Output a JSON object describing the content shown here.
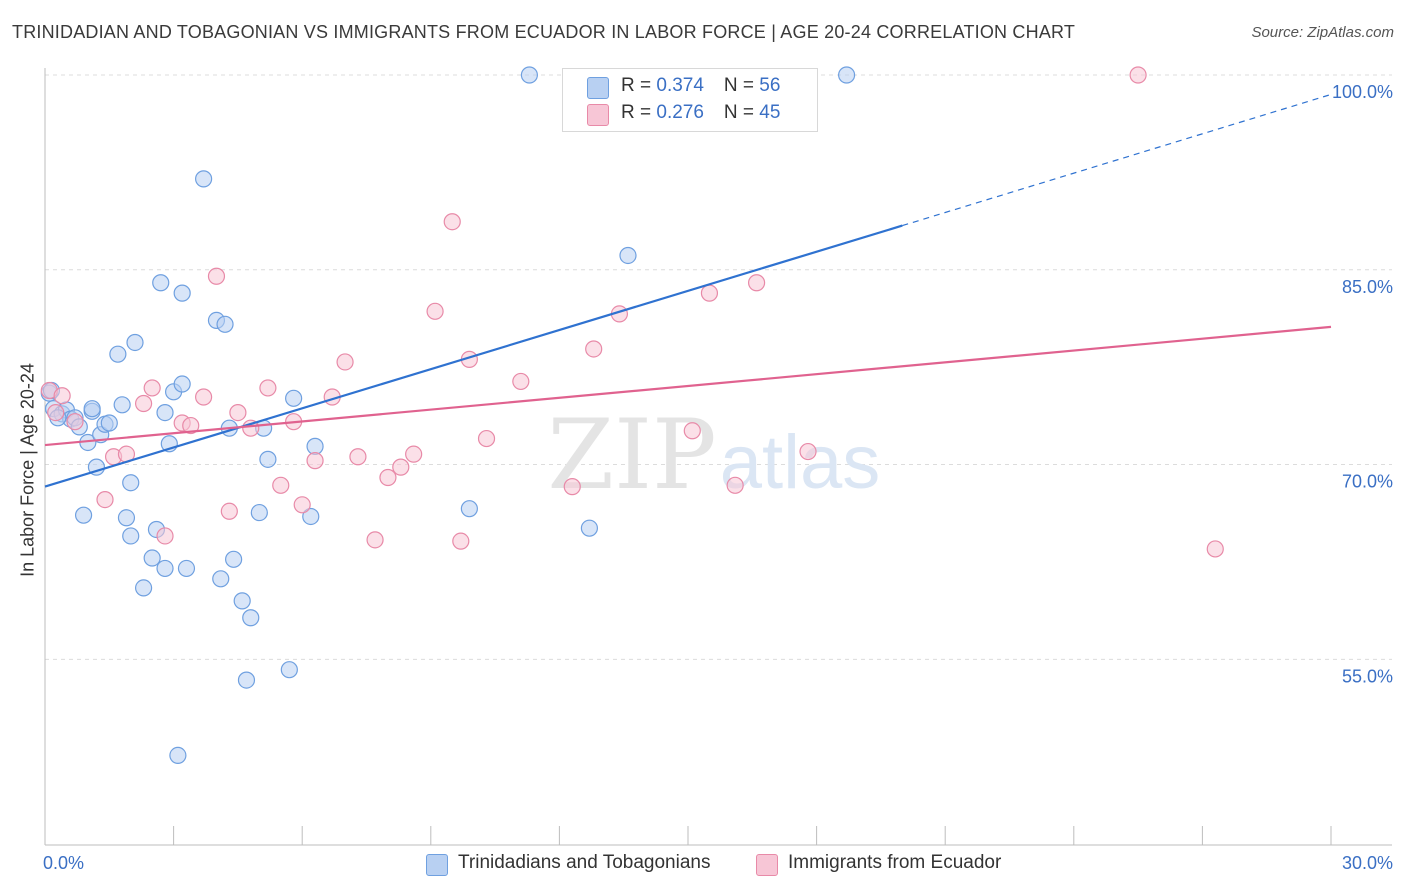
{
  "chart_data": {
    "type": "scatter",
    "title": "TRINIDADIAN AND TOBAGONIAN VS IMMIGRANTS FROM ECUADOR IN LABOR FORCE | AGE 20-24 CORRELATION CHART",
    "source": "Source: ZipAtlas.com",
    "xlabel": "",
    "ylabel": "In Labor Force | Age 20-24",
    "xlim": [
      0,
      30
    ],
    "ylim": [
      40.7,
      101.0
    ],
    "x_tick_labels": {
      "min": "0.0%",
      "max": "30.0%"
    },
    "y_ticks": [
      {
        "value": 55,
        "label": "55.0%"
      },
      {
        "value": 70,
        "label": "70.0%"
      },
      {
        "value": 85,
        "label": "85.0%"
      },
      {
        "value": 100,
        "label": "100.0%"
      }
    ],
    "watermark": {
      "zip": "ZIP",
      "atlas": "atlas"
    },
    "stats": [
      {
        "r_label": "R = ",
        "r_value": "0.374",
        "n_label": "N = ",
        "n_value": "56"
      },
      {
        "r_label": "R = ",
        "r_value": "0.276",
        "n_label": "N = ",
        "n_value": "45"
      }
    ],
    "series": [
      {
        "name": "Trinidadians and Tobagonians",
        "color": "#6fa0e0",
        "fill": "#b8d0f2",
        "line_color": "#2f72d0",
        "trend": {
          "x0": 0,
          "y0": 68.3,
          "x1": 20.0,
          "y1": 88.4,
          "dash_to_x": 30.0,
          "dash_to_y": 98.5
        },
        "points": [
          [
            0.1,
            75.5
          ],
          [
            0.2,
            74.3
          ],
          [
            0.4,
            73.9
          ],
          [
            0.5,
            74.2
          ],
          [
            0.6,
            73.5
          ],
          [
            0.7,
            73.6
          ],
          [
            0.8,
            72.9
          ],
          [
            0.9,
            66.1
          ],
          [
            1.0,
            71.7
          ],
          [
            1.1,
            74.1
          ],
          [
            1.1,
            74.3
          ],
          [
            1.2,
            69.8
          ],
          [
            1.3,
            72.3
          ],
          [
            1.4,
            73.1
          ],
          [
            1.5,
            73.2
          ],
          [
            1.7,
            78.5
          ],
          [
            1.8,
            74.6
          ],
          [
            1.9,
            65.9
          ],
          [
            2.0,
            64.5
          ],
          [
            2.0,
            68.6
          ],
          [
            2.1,
            79.4
          ],
          [
            2.3,
            60.5
          ],
          [
            2.5,
            62.8
          ],
          [
            2.6,
            65.0
          ],
          [
            2.7,
            84.0
          ],
          [
            2.8,
            62.0
          ],
          [
            2.8,
            74.0
          ],
          [
            2.9,
            71.6
          ],
          [
            3.0,
            75.6
          ],
          [
            3.1,
            47.6
          ],
          [
            3.2,
            76.2
          ],
          [
            3.2,
            83.2
          ],
          [
            3.3,
            62.0
          ],
          [
            3.7,
            92.0
          ],
          [
            4.0,
            81.1
          ],
          [
            4.1,
            61.2
          ],
          [
            4.2,
            80.8
          ],
          [
            4.3,
            72.8
          ],
          [
            4.4,
            62.7
          ],
          [
            4.6,
            59.5
          ],
          [
            4.7,
            53.4
          ],
          [
            4.8,
            58.2
          ],
          [
            5.0,
            66.3
          ],
          [
            5.1,
            72.8
          ],
          [
            5.2,
            70.4
          ],
          [
            5.7,
            54.2
          ],
          [
            5.8,
            75.1
          ],
          [
            6.2,
            66.0
          ],
          [
            6.3,
            71.4
          ],
          [
            9.9,
            66.6
          ],
          [
            11.3,
            100.0
          ],
          [
            12.7,
            65.1
          ],
          [
            13.6,
            86.1
          ],
          [
            18.7,
            100.0
          ],
          [
            0.15,
            75.7
          ],
          [
            0.3,
            73.6
          ]
        ]
      },
      {
        "name": "Immigrants from Ecuador",
        "color": "#e88aa8",
        "fill": "#f7c6d6",
        "line_color": "#e0628f",
        "trend": {
          "x0": 0,
          "y0": 71.5,
          "x1": 30.0,
          "y1": 80.6
        },
        "points": [
          [
            0.1,
            75.7
          ],
          [
            0.4,
            75.3
          ],
          [
            0.7,
            73.3
          ],
          [
            1.4,
            67.3
          ],
          [
            1.6,
            70.6
          ],
          [
            1.9,
            70.8
          ],
          [
            2.3,
            74.7
          ],
          [
            2.5,
            75.9
          ],
          [
            2.8,
            64.5
          ],
          [
            3.2,
            73.2
          ],
          [
            3.4,
            73.0
          ],
          [
            3.7,
            75.2
          ],
          [
            4.0,
            84.5
          ],
          [
            4.3,
            66.4
          ],
          [
            4.5,
            74.0
          ],
          [
            4.8,
            72.8
          ],
          [
            5.2,
            75.9
          ],
          [
            5.5,
            68.4
          ],
          [
            5.8,
            73.3
          ],
          [
            6.0,
            66.9
          ],
          [
            6.3,
            70.3
          ],
          [
            6.7,
            75.2
          ],
          [
            7.0,
            77.9
          ],
          [
            7.3,
            70.6
          ],
          [
            7.7,
            64.2
          ],
          [
            8.0,
            69.0
          ],
          [
            8.3,
            69.8
          ],
          [
            8.6,
            70.8
          ],
          [
            9.1,
            81.8
          ],
          [
            9.5,
            88.7
          ],
          [
            9.7,
            64.1
          ],
          [
            9.9,
            78.1
          ],
          [
            10.3,
            72.0
          ],
          [
            11.1,
            76.4
          ],
          [
            12.3,
            68.3
          ],
          [
            12.8,
            78.9
          ],
          [
            13.4,
            81.6
          ],
          [
            15.1,
            72.6
          ],
          [
            15.5,
            83.2
          ],
          [
            16.1,
            68.4
          ],
          [
            16.6,
            84.0
          ],
          [
            17.8,
            71.0
          ],
          [
            25.5,
            100.0
          ],
          [
            27.3,
            63.5
          ],
          [
            0.25,
            74.0
          ]
        ]
      }
    ]
  }
}
